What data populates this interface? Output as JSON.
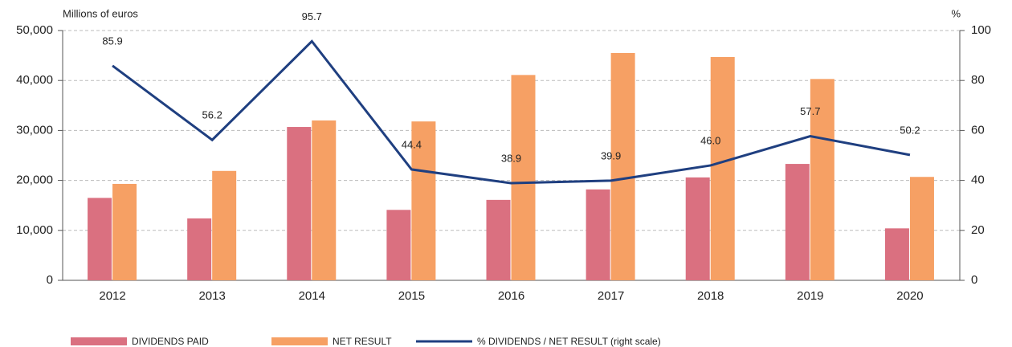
{
  "chart_data": {
    "type": "bar",
    "y_label": "Millions of euros",
    "y2_label": "%",
    "categories": [
      "2012",
      "2013",
      "2014",
      "2015",
      "2016",
      "2017",
      "2018",
      "2019",
      "2020"
    ],
    "series": [
      {
        "name": "DIVIDENDS PAID",
        "type": "bar",
        "color": "#da7080",
        "values": [
          16500,
          12400,
          30700,
          14100,
          16100,
          18200,
          20600,
          23300,
          10400
        ]
      },
      {
        "name": "NET RESULT",
        "type": "bar",
        "color": "#f6a064",
        "values": [
          19300,
          21900,
          32000,
          31800,
          41100,
          45500,
          44700,
          40300,
          20700
        ]
      },
      {
        "name": "% DIVIDENDS / NET RESULT (right scale)",
        "type": "line",
        "axis": "y2",
        "color": "#1f3f80",
        "values": [
          85.9,
          56.2,
          95.7,
          44.4,
          38.9,
          39.9,
          46.0,
          57.7,
          50.2
        ],
        "value_labels": [
          "85.9",
          "56.2",
          "95.7",
          "44.4",
          "38.9",
          "39.9",
          "46.0",
          "57.7",
          "50.2"
        ]
      }
    ],
    "ylim": [
      0,
      50000
    ],
    "yticks": [
      0,
      {
        "value": 10000,
        "label": "10,000"
      },
      {
        "value": 20000,
        "label": "20,000"
      },
      {
        "value": 30000,
        "label": "30,000"
      },
      {
        "value": 40000,
        "label": "40,000"
      },
      {
        "value": 50000,
        "label": "50,000"
      }
    ],
    "y2lim": [
      0,
      100
    ],
    "y2ticks": [
      0,
      20,
      40,
      60,
      80,
      100
    ],
    "grid": true
  }
}
